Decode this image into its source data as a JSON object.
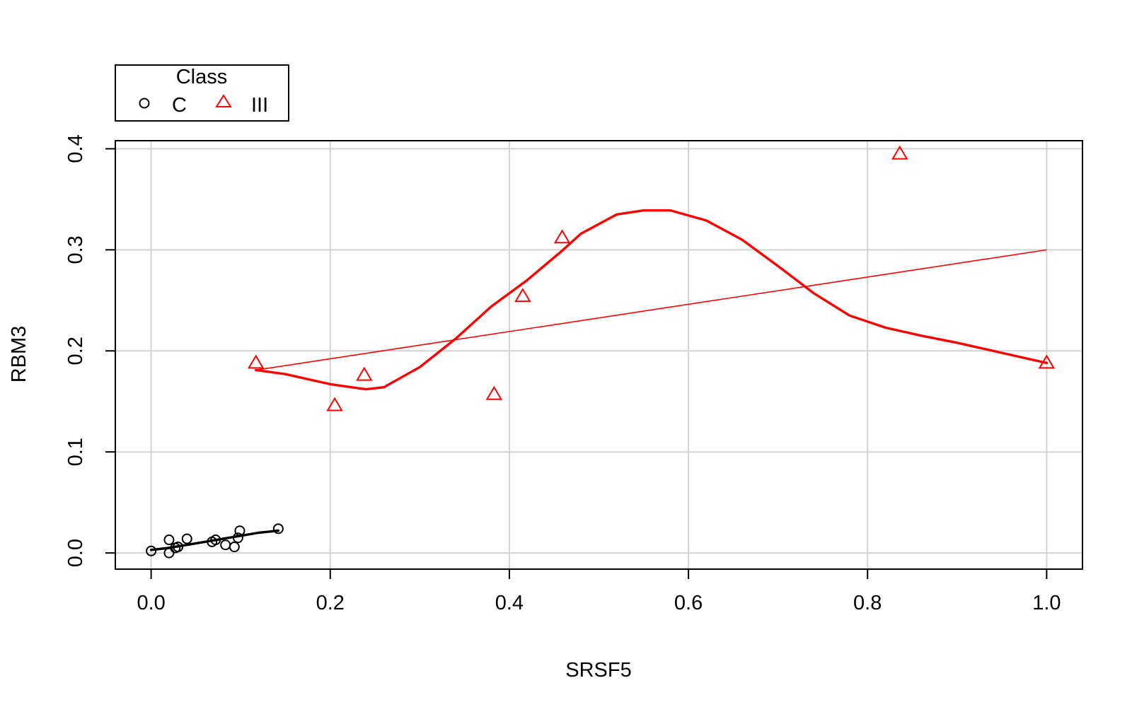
{
  "chart_data": {
    "type": "scatter",
    "xlabel": "SRSF5",
    "ylabel": "RBM3",
    "xlim": [
      -0.04,
      1.04
    ],
    "ylim": [
      -0.016,
      0.408
    ],
    "xticks": [
      0.0,
      0.2,
      0.4,
      0.6,
      0.8,
      1.0
    ],
    "xtick_labels": [
      "0.0",
      "0.2",
      "0.4",
      "0.6",
      "0.8",
      "1.0"
    ],
    "yticks": [
      0.0,
      0.1,
      0.2,
      0.3,
      0.4
    ],
    "ytick_labels": [
      "0.0",
      "0.1",
      "0.2",
      "0.3",
      "0.4"
    ],
    "grid": true,
    "legend": {
      "title": "Class",
      "position": "top-left, outside plot",
      "entries": [
        {
          "label": "C",
          "marker": "circle",
          "color": "#000000"
        },
        {
          "label": "III",
          "marker": "triangle",
          "color": "#ff0000"
        }
      ]
    },
    "series": [
      {
        "name": "C",
        "marker": "circle",
        "color": "#000000",
        "x": [
          0.0,
          0.02,
          0.02,
          0.027,
          0.03,
          0.04,
          0.068,
          0.072,
          0.083,
          0.093,
          0.097,
          0.099,
          0.142
        ],
        "y": [
          0.002,
          0.0,
          0.013,
          0.005,
          0.006,
          0.014,
          0.011,
          0.013,
          0.008,
          0.006,
          0.015,
          0.022,
          0.024
        ],
        "linear_fit": {
          "x": [
            0.0,
            0.142
          ],
          "y": [
            0.003,
            0.023
          ]
        },
        "smooth_fit": {
          "x": [
            0.0,
            0.02,
            0.04,
            0.06,
            0.08,
            0.1,
            0.12,
            0.142
          ],
          "y": [
            0.003,
            0.005,
            0.008,
            0.011,
            0.014,
            0.017,
            0.02,
            0.022
          ]
        }
      },
      {
        "name": "III",
        "marker": "triangle",
        "color": "#ff0000",
        "x": [
          0.117,
          0.205,
          0.238,
          0.383,
          0.415,
          0.459,
          0.836,
          1.0
        ],
        "y": [
          0.188,
          0.146,
          0.176,
          0.157,
          0.254,
          0.312,
          0.395,
          0.188
        ],
        "linear_fit": {
          "x": [
            0.117,
            1.0
          ],
          "y": [
            0.181,
            0.3
          ]
        },
        "smooth_fit": {
          "x": [
            0.117,
            0.15,
            0.2,
            0.24,
            0.26,
            0.3,
            0.34,
            0.38,
            0.42,
            0.46,
            0.48,
            0.52,
            0.55,
            0.58,
            0.62,
            0.66,
            0.7,
            0.74,
            0.78,
            0.82,
            0.86,
            0.9,
            0.95,
            1.0
          ],
          "y": [
            0.181,
            0.177,
            0.167,
            0.162,
            0.164,
            0.184,
            0.212,
            0.244,
            0.27,
            0.3,
            0.316,
            0.335,
            0.339,
            0.339,
            0.329,
            0.31,
            0.284,
            0.257,
            0.235,
            0.223,
            0.215,
            0.208,
            0.198,
            0.188
          ]
        }
      }
    ]
  }
}
